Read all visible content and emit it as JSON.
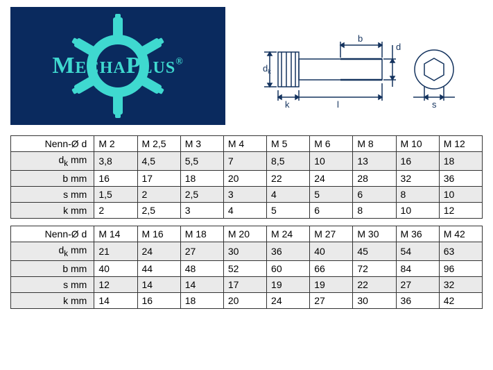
{
  "logo": {
    "text": "MechaPlus",
    "reg": "®",
    "bg": "#0a2a5e",
    "fg": "#3fd9d0"
  },
  "diagram": {
    "labels": {
      "dk": "d",
      "dksub": "k",
      "k": "k",
      "l": "l",
      "b": "b",
      "d": "d",
      "s": "s"
    },
    "stroke": "#14335e"
  },
  "table1": {
    "rows": [
      {
        "label": "Nenn-Ø d",
        "cells": [
          "M 2",
          "M 2,5",
          "M 3",
          "M 4",
          "M 5",
          "M 6",
          "M 8",
          "M 10",
          "M 12"
        ],
        "first": true
      },
      {
        "label": "d",
        "sub": "k",
        "unit": " mm",
        "cells": [
          "3,8",
          "4,5",
          "5,5",
          "7",
          "8,5",
          "10",
          "13",
          "16",
          "18"
        ]
      },
      {
        "label": "b  mm",
        "cells": [
          "16",
          "17",
          "18",
          "20",
          "22",
          "24",
          "28",
          "32",
          "36"
        ]
      },
      {
        "label": "s  mm",
        "cells": [
          "1,5",
          "2",
          "2,5",
          "3",
          "4",
          "5",
          "6",
          "8",
          "10"
        ]
      },
      {
        "label": "k  mm",
        "cells": [
          "2",
          "2,5",
          "3",
          "4",
          "5",
          "6",
          "8",
          "10",
          "12"
        ]
      }
    ]
  },
  "table2": {
    "rows": [
      {
        "label": "Nenn-Ø d",
        "cells": [
          "M 14",
          "M 16",
          "M 18",
          "M 20",
          "M 24",
          "M 27",
          "M 30",
          "M 36",
          "M 42"
        ],
        "first": true
      },
      {
        "label": "d",
        "sub": "k",
        "unit": " mm",
        "cells": [
          "21",
          "24",
          "27",
          "30",
          "36",
          "40",
          "45",
          "54",
          "63"
        ]
      },
      {
        "label": "b  mm",
        "cells": [
          "40",
          "44",
          "48",
          "52",
          "60",
          "66",
          "72",
          "84",
          "96"
        ]
      },
      {
        "label": "s  mm",
        "cells": [
          "12",
          "14",
          "14",
          "17",
          "19",
          "19",
          "22",
          "27",
          "32"
        ]
      },
      {
        "label": "k  mm",
        "cells": [
          "14",
          "16",
          "18",
          "20",
          "24",
          "27",
          "30",
          "36",
          "42"
        ]
      }
    ]
  }
}
